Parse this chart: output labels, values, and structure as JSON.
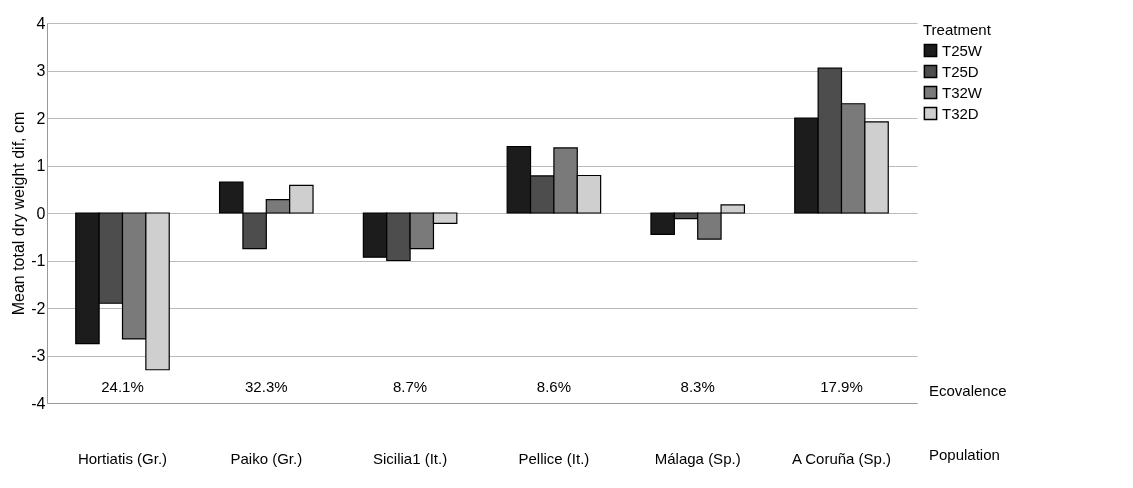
{
  "chart_data": {
    "type": "bar",
    "ylabel": "Mean total dry weight dif, cm",
    "legend_title": "Treatment",
    "categories": [
      "Hortiatis (Gr.)",
      "Paiko (Gr.)",
      "Sicilia1 (It.)",
      "Pellice (It.)",
      "Málaga (Sp.)",
      "A Coruña (Sp.)"
    ],
    "series": [
      {
        "name": "T25W",
        "color": "#1c1c1c",
        "values": [
          -2.75,
          0.65,
          -0.93,
          1.4,
          -0.45,
          2.0
        ]
      },
      {
        "name": "T25D",
        "color": "#4d4d4d",
        "values": [
          -1.9,
          -0.75,
          -1.0,
          0.78,
          -0.12,
          3.05
        ]
      },
      {
        "name": "T32W",
        "color": "#7a7a7a",
        "values": [
          -2.65,
          0.28,
          -0.75,
          1.37,
          -0.55,
          2.3
        ]
      },
      {
        "name": "T32D",
        "color": "#cfcfcf",
        "values": [
          -3.3,
          0.58,
          -0.22,
          0.79,
          0.17,
          1.92
        ]
      }
    ],
    "ylim": [
      -4,
      4
    ],
    "yticks": [
      -4,
      -3,
      -2,
      -1,
      0,
      1,
      2,
      3,
      4
    ],
    "grid": "y",
    "legend": "right",
    "annotations": [
      "24.1%",
      "32.3%",
      "8.7%",
      "8.6%",
      "8.3%",
      "17.9%",
      "Ecovalence",
      "Population"
    ]
  }
}
